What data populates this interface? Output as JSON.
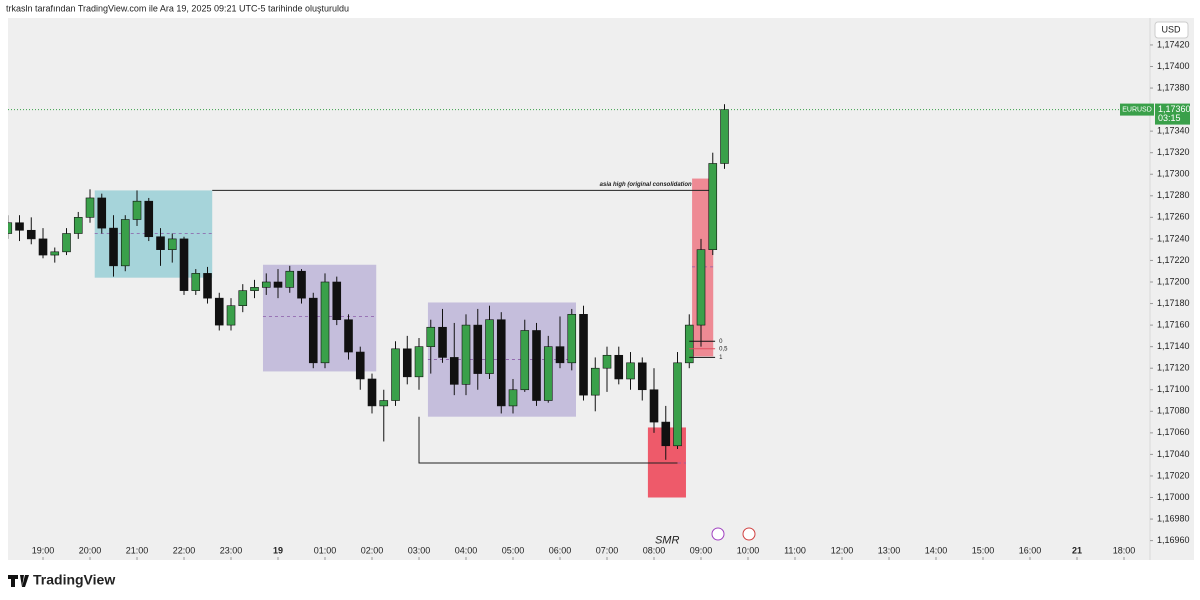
{
  "header": {
    "caption": "trkasln tarafından TradingView.com ile Ara 19, 2025 09:21 UTC-5 tarihinde oluşturuldu"
  },
  "chart_data": {
    "type": "candlestick",
    "currency": "USD",
    "symbol": "EURUSD",
    "last_price": {
      "value": 1.1736,
      "label": "1,17360"
    },
    "countdown": "03:15",
    "up_color": "#3aa04a",
    "down_color": "#111111",
    "x": [
      -0.75,
      -0.5,
      -0.25,
      0,
      0.25,
      0.5,
      0.75,
      1,
      1.25,
      1.5,
      1.75,
      2,
      2.25,
      2.5,
      2.75,
      3,
      3.25,
      3.5,
      3.75,
      4,
      4.25,
      4.5,
      4.75,
      5,
      5.25,
      5.5,
      5.75,
      6,
      6.25,
      6.5,
      6.75,
      7,
      7.25,
      7.5,
      7.75,
      8,
      8.25,
      8.5,
      8.75,
      9,
      9.25,
      9.5,
      9.75,
      10,
      10.25,
      10.5,
      10.75,
      11,
      11.25,
      11.5,
      11.75,
      12,
      12.25,
      12.5,
      12.75,
      13,
      13.25,
      13.5,
      13.75,
      14,
      14.25,
      14.5
    ],
    "open": [
      1.17245,
      1.17255,
      1.17248,
      1.1724,
      1.17225,
      1.17228,
      1.17245,
      1.1726,
      1.17278,
      1.1725,
      1.17215,
      1.17258,
      1.17275,
      1.17242,
      1.1723,
      1.1724,
      1.17192,
      1.17208,
      1.17185,
      1.1716,
      1.17178,
      1.17192,
      1.17195,
      1.172,
      1.17195,
      1.1721,
      1.17185,
      1.17125,
      1.172,
      1.17165,
      1.17135,
      1.1711,
      1.17085,
      1.1709,
      1.17138,
      1.17112,
      1.1714,
      1.17158,
      1.1713,
      1.17105,
      1.1716,
      1.17115,
      1.17165,
      1.17085,
      1.171,
      1.17155,
      1.1709,
      1.1714,
      1.17125,
      1.1717,
      1.17095,
      1.1712,
      1.17132,
      1.1711,
      1.17125,
      1.171,
      1.1707,
      1.17048,
      1.17125,
      1.1716,
      1.1723,
      1.1731
    ],
    "high": [
      1.17262,
      1.17262,
      1.1726,
      1.1725,
      1.17232,
      1.1725,
      1.17265,
      1.17286,
      1.17282,
      1.17262,
      1.17262,
      1.17285,
      1.17278,
      1.1725,
      1.17245,
      1.17242,
      1.17212,
      1.17214,
      1.1719,
      1.17185,
      1.17198,
      1.17202,
      1.17208,
      1.17212,
      1.17215,
      1.17212,
      1.1719,
      1.17208,
      1.17205,
      1.1717,
      1.1714,
      1.17115,
      1.171,
      1.17145,
      1.1715,
      1.17148,
      1.17165,
      1.17175,
      1.17162,
      1.1717,
      1.17175,
      1.17178,
      1.17172,
      1.1711,
      1.17165,
      1.17162,
      1.1715,
      1.17168,
      1.17175,
      1.17178,
      1.1713,
      1.1714,
      1.1714,
      1.17135,
      1.1713,
      1.1712,
      1.17085,
      1.17135,
      1.1717,
      1.1724,
      1.1732,
      1.17365
    ],
    "low": [
      1.1724,
      1.17238,
      1.17235,
      1.17222,
      1.17218,
      1.17225,
      1.1724,
      1.17255,
      1.17245,
      1.17205,
      1.1721,
      1.17252,
      1.17238,
      1.17215,
      1.17218,
      1.17188,
      1.17188,
      1.1718,
      1.17155,
      1.17155,
      1.17172,
      1.17185,
      1.17188,
      1.17185,
      1.1719,
      1.1718,
      1.1712,
      1.1712,
      1.1716,
      1.17128,
      1.171,
      1.17078,
      1.17052,
      1.17085,
      1.17105,
      1.171,
      1.17115,
      1.17125,
      1.17095,
      1.17095,
      1.171,
      1.1711,
      1.17078,
      1.17078,
      1.17098,
      1.17085,
      1.17088,
      1.1712,
      1.17118,
      1.1709,
      1.1708,
      1.17098,
      1.17105,
      1.171,
      1.1709,
      1.1706,
      1.17035,
      1.17045,
      1.1712,
      1.1714,
      1.17225,
      1.17305
    ],
    "close": [
      1.17255,
      1.17248,
      1.1724,
      1.17225,
      1.17228,
      1.17245,
      1.1726,
      1.17278,
      1.1725,
      1.17215,
      1.17258,
      1.17275,
      1.17242,
      1.1723,
      1.1724,
      1.17192,
      1.17208,
      1.17185,
      1.1716,
      1.17178,
      1.17192,
      1.17195,
      1.172,
      1.17195,
      1.1721,
      1.17185,
      1.17125,
      1.172,
      1.17165,
      1.17135,
      1.1711,
      1.17085,
      1.1709,
      1.17138,
      1.17112,
      1.1714,
      1.17158,
      1.1713,
      1.17105,
      1.1716,
      1.17115,
      1.17165,
      1.17085,
      1.171,
      1.17155,
      1.1709,
      1.1714,
      1.17125,
      1.1717,
      1.17095,
      1.1712,
      1.17132,
      1.1711,
      1.17125,
      1.171,
      1.1707,
      1.17048,
      1.17125,
      1.1716,
      1.1723,
      1.1731,
      1.1736
    ],
    "xlim": [
      -0.745,
      23.553
    ],
    "ylim": [
      1.16942,
      1.17445
    ],
    "xticks": [
      {
        "value": 0,
        "label": "19:00"
      },
      {
        "value": 1,
        "label": "20:00"
      },
      {
        "value": 2,
        "label": "21:00"
      },
      {
        "value": 3,
        "label": "22:00"
      },
      {
        "value": 4,
        "label": "23:00"
      },
      {
        "value": 5,
        "label": "19"
      },
      {
        "value": 6,
        "label": "01:00"
      },
      {
        "value": 7,
        "label": "02:00"
      },
      {
        "value": 8,
        "label": "03:00"
      },
      {
        "value": 9,
        "label": "04:00"
      },
      {
        "value": 10,
        "label": "05:00"
      },
      {
        "value": 11,
        "label": "06:00"
      },
      {
        "value": 12,
        "label": "07:00"
      },
      {
        "value": 13,
        "label": "08:00"
      },
      {
        "value": 14,
        "label": "09:00"
      },
      {
        "value": 15,
        "label": "10:00"
      },
      {
        "value": 16,
        "label": "11:00"
      },
      {
        "value": 17,
        "label": "12:00"
      },
      {
        "value": 18,
        "label": "13:00"
      },
      {
        "value": 19,
        "label": "14:00"
      },
      {
        "value": 20,
        "label": "15:00"
      },
      {
        "value": 21,
        "label": "16:00"
      },
      {
        "value": 22,
        "label": "21"
      },
      {
        "value": 23,
        "label": "18:00"
      }
    ],
    "yticks": [
      {
        "value": 1.1742,
        "label": "1,17420"
      },
      {
        "value": 1.174,
        "label": "1,17400"
      },
      {
        "value": 1.1738,
        "label": "1,17380"
      },
      {
        "value": 1.1734,
        "label": "1,17340"
      },
      {
        "value": 1.1732,
        "label": "1,17320"
      },
      {
        "value": 1.173,
        "label": "1,17300"
      },
      {
        "value": 1.1728,
        "label": "1,17280"
      },
      {
        "value": 1.1726,
        "label": "1,17260"
      },
      {
        "value": 1.1724,
        "label": "1,17240"
      },
      {
        "value": 1.1722,
        "label": "1,17220"
      },
      {
        "value": 1.172,
        "label": "1,17200"
      },
      {
        "value": 1.1718,
        "label": "1,17180"
      },
      {
        "value": 1.1716,
        "label": "1,17160"
      },
      {
        "value": 1.1714,
        "label": "1,17140"
      },
      {
        "value": 1.1712,
        "label": "1,17120"
      },
      {
        "value": 1.171,
        "label": "1,17100"
      },
      {
        "value": 1.1708,
        "label": "1,17080"
      },
      {
        "value": 1.1706,
        "label": "1,17060"
      },
      {
        "value": 1.1704,
        "label": "1,17040"
      },
      {
        "value": 1.1702,
        "label": "1,17020"
      },
      {
        "value": 1.17,
        "label": "1,17000"
      },
      {
        "value": 1.1698,
        "label": "1,16980"
      },
      {
        "value": 1.1696,
        "label": "1,16960"
      }
    ],
    "zones": [
      {
        "x0": 1.1,
        "x1": 3.6,
        "y0": 1.17204,
        "y1": 1.17285,
        "mid": 1.17245,
        "color": "#a6d4da"
      },
      {
        "x0": 4.68,
        "x1": 7.09,
        "y0": 1.17117,
        "y1": 1.17216,
        "mid": 1.17168,
        "color": "#c5bedc"
      },
      {
        "x0": 8.19,
        "x1": 11.34,
        "y0": 1.17075,
        "y1": 1.17181,
        "mid": 1.17128,
        "color": "#c5bedc"
      },
      {
        "x0": 12.87,
        "x1": 13.68,
        "y0": 1.17,
        "y1": 1.17065,
        "mid": 1.17032,
        "color": "#ee5a6a"
      },
      {
        "x0": 13.81,
        "x1": 14.26,
        "y0": 1.17131,
        "y1": 1.17296,
        "mid": 1.17214,
        "color": "#ee8a94"
      }
    ],
    "asia_high": {
      "label": "asia high (original consolidation",
      "price": 1.17285,
      "x0": 3.6,
      "x1": 14.27
    },
    "sweep_low": {
      "price": 1.17032,
      "top": 1.17075,
      "x0": 8.0,
      "x1": 13.5
    },
    "fib": {
      "x0": 13.75,
      "x1": 14.3,
      "levels": [
        {
          "value": 1.17145,
          "label": "0",
          "color": "#111111"
        },
        {
          "value": 1.17138,
          "label": "0,5",
          "color": "#e05060"
        },
        {
          "value": 1.1713,
          "label": "1",
          "color": "#111111"
        }
      ]
    },
    "smr": {
      "label": "SMR",
      "x": 13.28,
      "price": 1.16985
    }
  },
  "footer": {
    "brand": "TradingView"
  }
}
